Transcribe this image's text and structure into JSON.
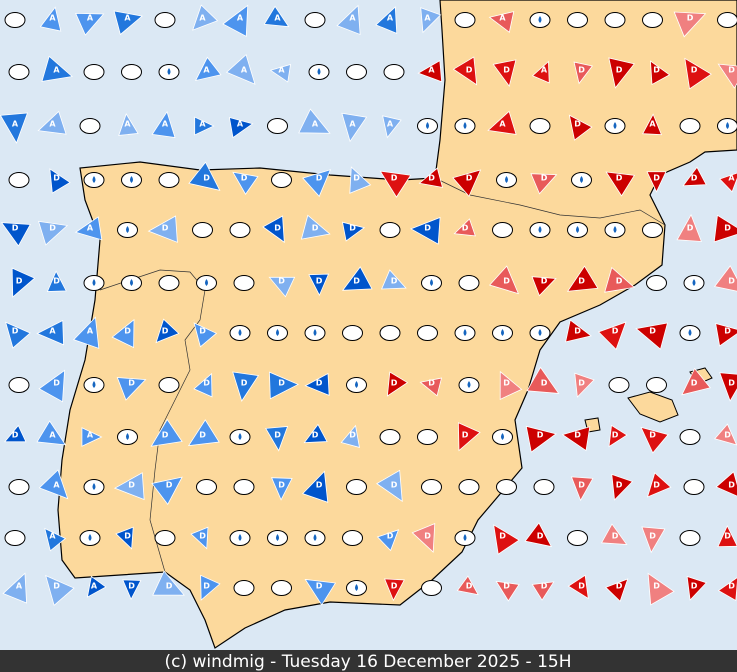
{
  "caption": "(c) windmig - Tuesday 16 December 2025 - 15H",
  "symbols": {
    "anticyclone": "A",
    "depression": "D"
  }
}
